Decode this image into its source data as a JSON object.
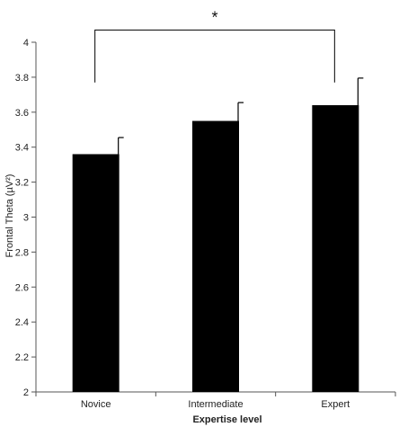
{
  "chart_data": {
    "type": "bar",
    "categories": [
      "Novice",
      "Intermediate",
      "Expert"
    ],
    "values": [
      3.36,
      3.55,
      3.64
    ],
    "error_upper": [
      0.095,
      0.105,
      0.155
    ],
    "xlabel": "Expertise level",
    "ylabel": "Frontal Theta (µV²)",
    "ylim": [
      2,
      4
    ],
    "yticks": [
      2,
      2.2,
      2.4,
      2.6,
      2.8,
      3,
      3.2,
      3.4,
      3.6,
      3.8,
      4
    ],
    "ytick_labels": [
      "2",
      "2.2",
      "2.4",
      "2.6",
      "2.8",
      "3",
      "3.2",
      "3.4",
      "3.6",
      "3.8",
      "4"
    ],
    "grid": false,
    "bar_color": "#000000",
    "significance": {
      "from_category": "Novice",
      "to_category": "Expert",
      "label": "*",
      "bracket_level": 4.07,
      "drop_to": 3.77
    }
  }
}
